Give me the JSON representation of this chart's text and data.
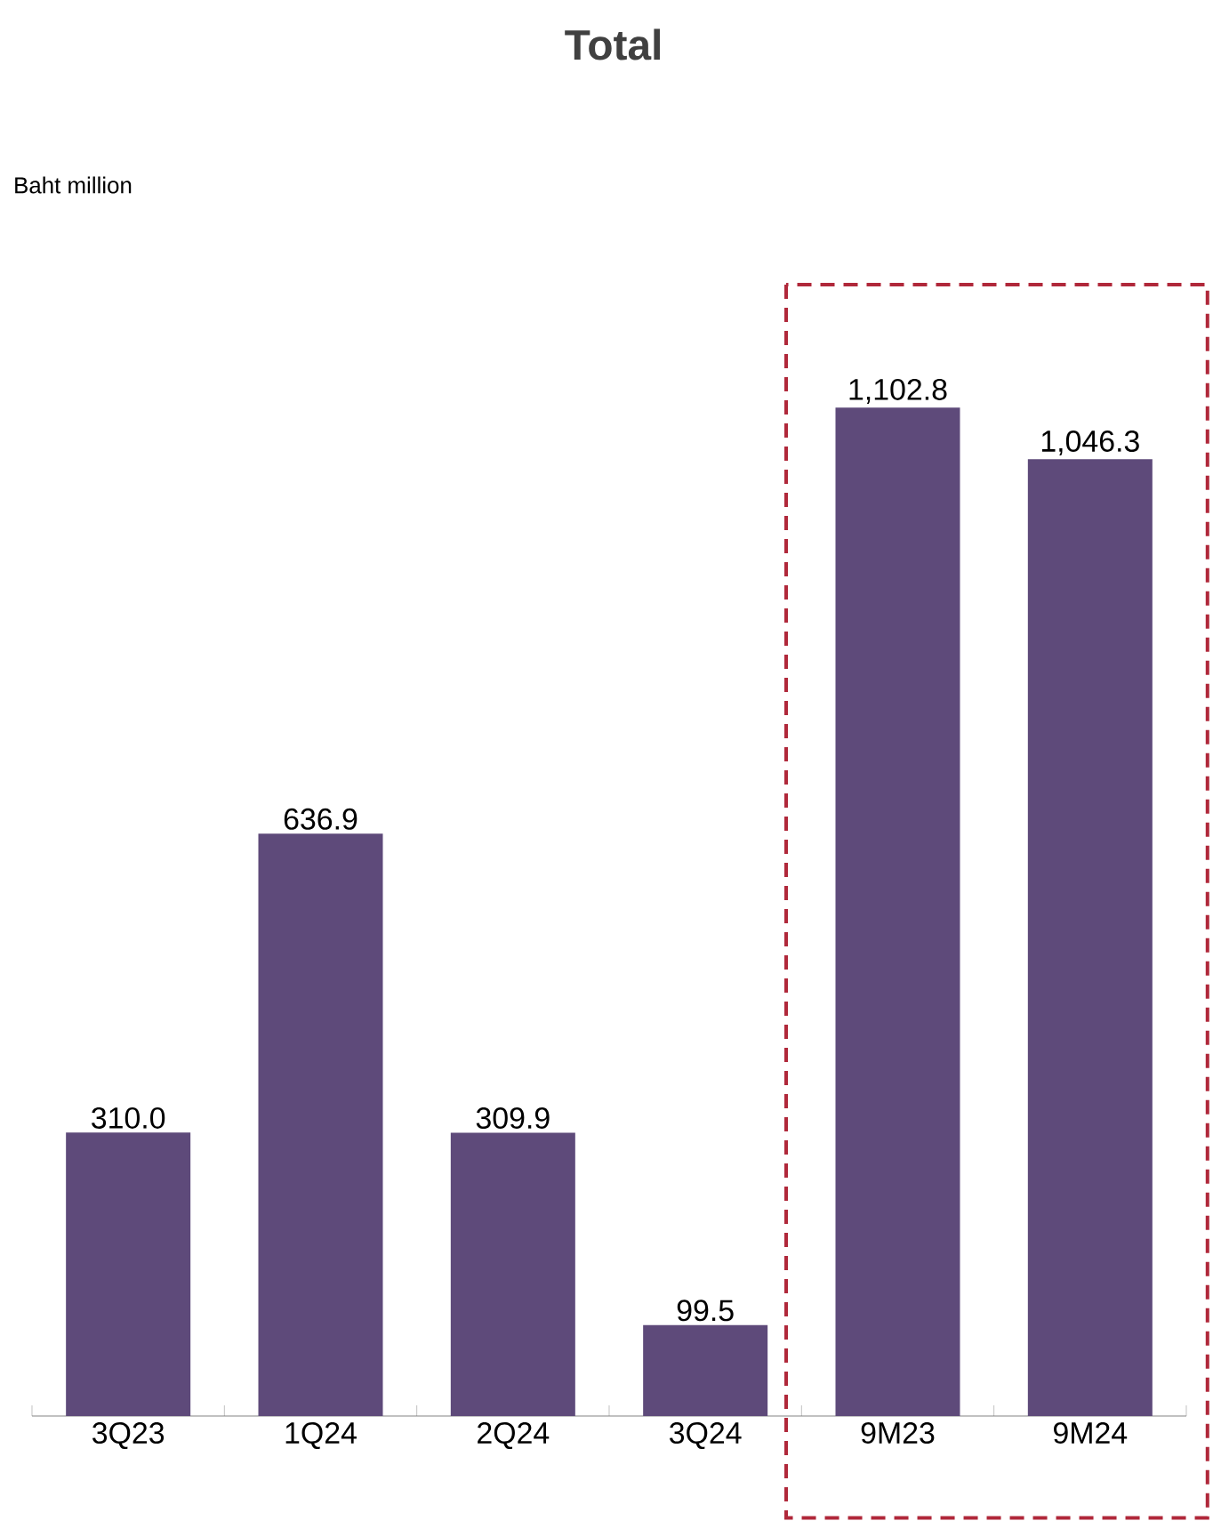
{
  "chart_data": {
    "type": "bar",
    "title": "Total",
    "annotations": [
      "Baht million"
    ],
    "categories": [
      "3Q23",
      "1Q24",
      "2Q24",
      "3Q24",
      "9M23",
      "9M24"
    ],
    "values": [
      310.0,
      636.9,
      309.9,
      99.5,
      1102.8,
      1046.3
    ],
    "value_labels": [
      "310.0",
      "636.9",
      "309.9",
      "99.5",
      "1,102.8",
      "1,046.3"
    ],
    "color": "#5e4a7a",
    "grid": false
  }
}
